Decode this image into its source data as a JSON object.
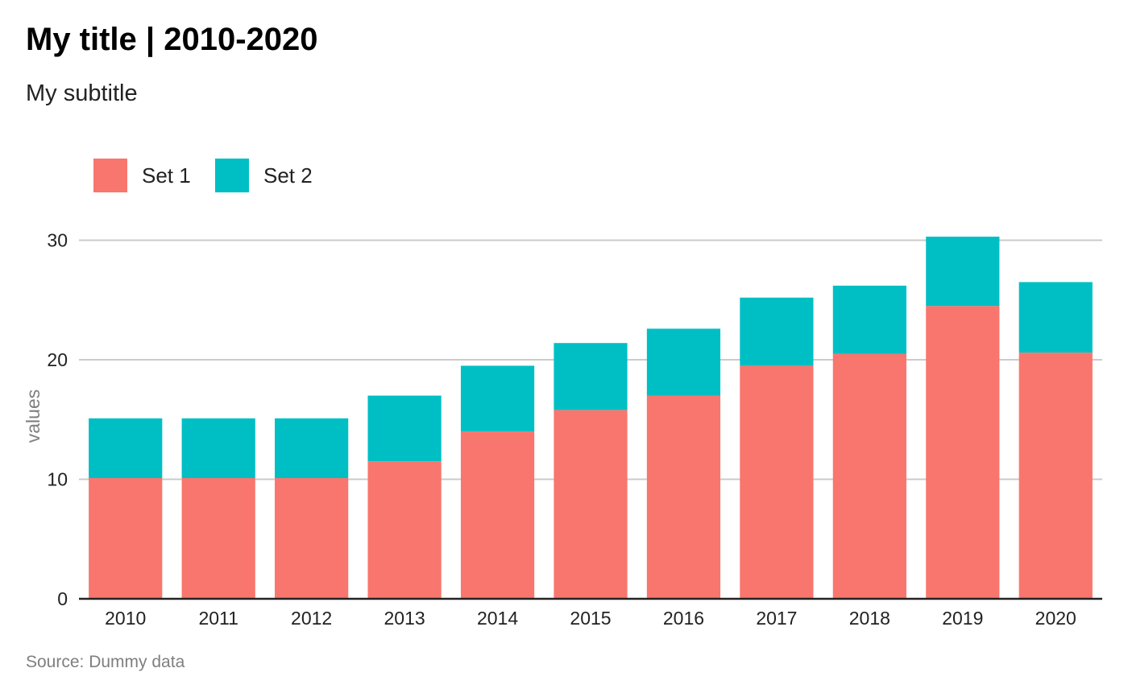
{
  "chart_data": {
    "type": "bar",
    "stacked": true,
    "title": "My title | 2010-2020",
    "subtitle": "My subtitle",
    "xlabel": "",
    "ylabel": "values",
    "caption": "Source: Dummy data",
    "categories": [
      "2010",
      "2011",
      "2012",
      "2013",
      "2014",
      "2015",
      "2016",
      "2017",
      "2018",
      "2019",
      "2020"
    ],
    "series": [
      {
        "name": "Set 1",
        "color": "#F8766D",
        "values": [
          10.1,
          10.1,
          10.1,
          11.5,
          14.0,
          15.8,
          17.0,
          19.5,
          20.5,
          24.5,
          20.6
        ]
      },
      {
        "name": "Set 2",
        "color": "#00BFC4",
        "values": [
          5.0,
          5.0,
          5.0,
          5.5,
          5.5,
          5.6,
          5.6,
          5.7,
          5.7,
          5.8,
          5.9
        ]
      }
    ],
    "yticks": [
      0,
      10,
      20,
      30
    ],
    "ylim": [
      0,
      30.5
    ],
    "grid": "horizontal",
    "legend_position": "top-left"
  }
}
